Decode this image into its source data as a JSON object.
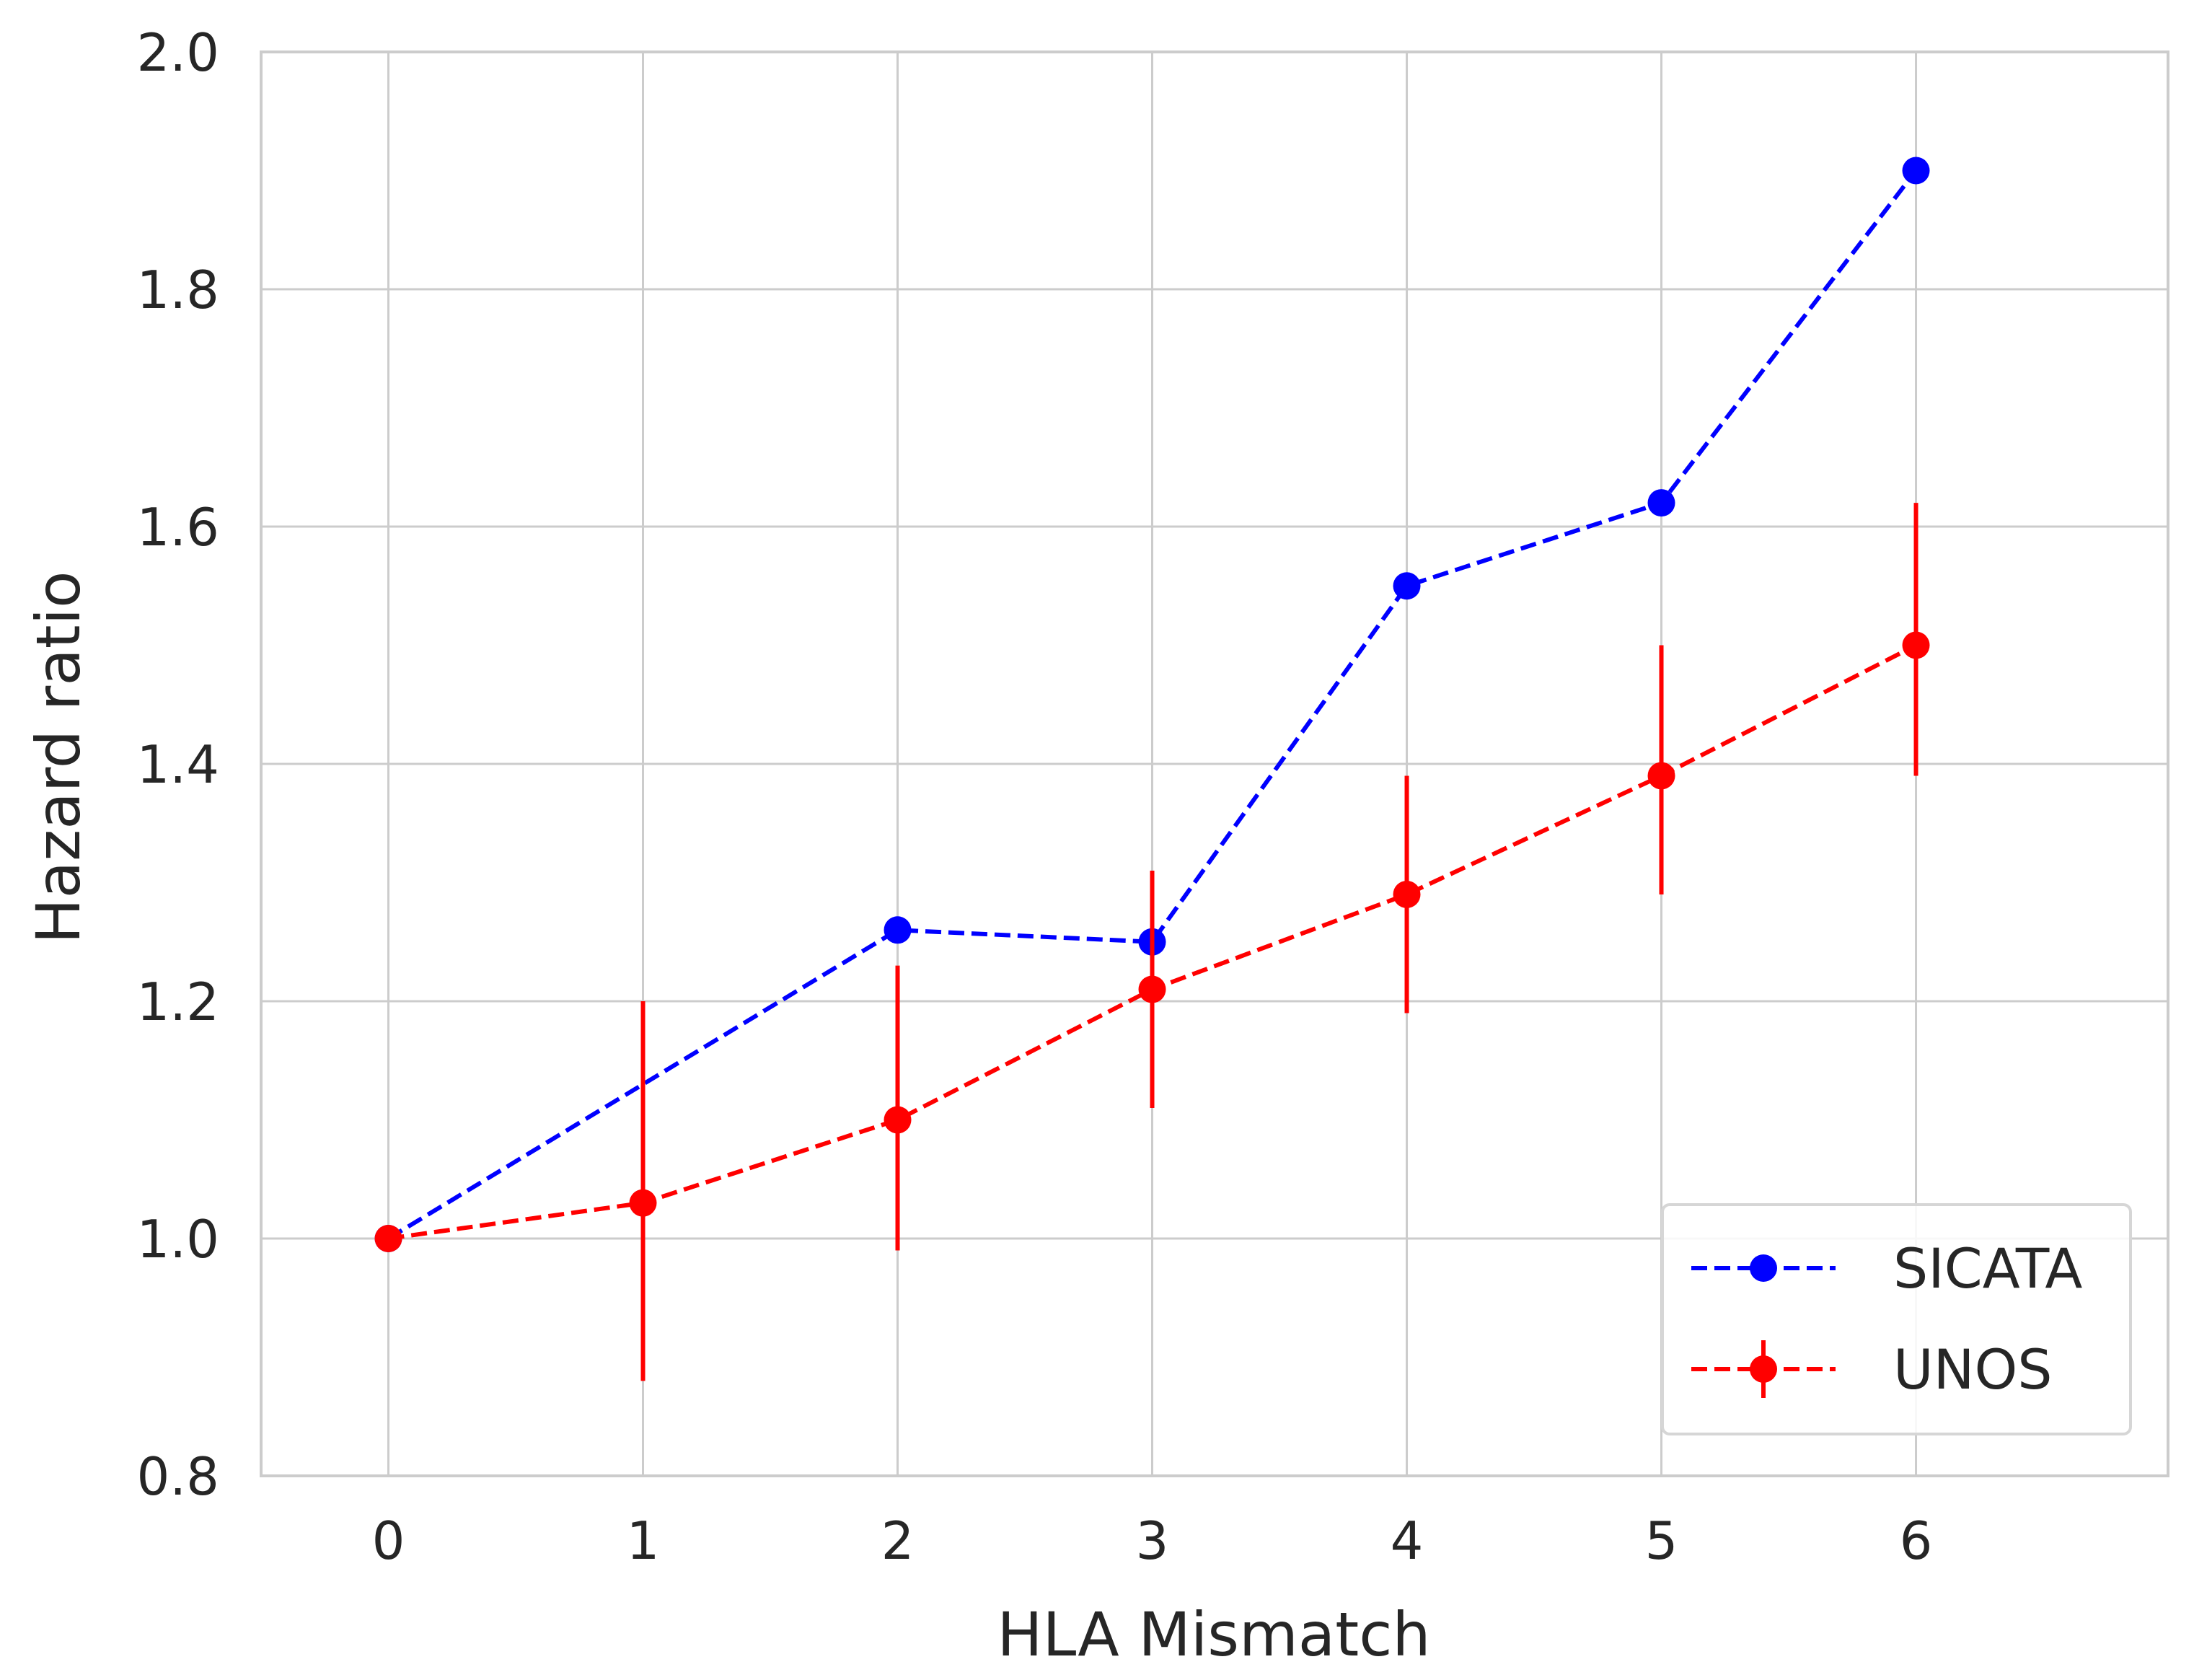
{
  "chart_data": {
    "type": "line",
    "title": "",
    "xlabel": "HLA Mismatch",
    "ylabel": "Hazard ratio",
    "x": [
      0,
      1,
      2,
      3,
      4,
      5,
      6
    ],
    "xlim": [
      -0.5,
      6.99
    ],
    "ylim": [
      0.8,
      2.0
    ],
    "x_ticks": [
      "0",
      "1",
      "2",
      "3",
      "4",
      "5",
      "6"
    ],
    "y_ticks": [
      "0.8",
      "1.0",
      "1.2",
      "1.4",
      "1.6",
      "1.8",
      "2.0"
    ],
    "grid": true,
    "legend_position": "bottom-right",
    "series": [
      {
        "name": "SICATA",
        "color": "#0000ff",
        "line_style": "dashed",
        "marker": "circle",
        "values": [
          1.0,
          1.13,
          1.26,
          1.25,
          1.55,
          1.62,
          1.9
        ]
      },
      {
        "name": "UNOS",
        "color": "#ff0000",
        "line_style": "dashed",
        "marker": "circle",
        "values": [
          1.0,
          1.03,
          1.1,
          1.21,
          1.29,
          1.39,
          1.5
        ],
        "error_low": [
          1.0,
          0.88,
          0.99,
          1.11,
          1.19,
          1.29,
          1.39
        ],
        "error_high": [
          1.0,
          1.2,
          1.23,
          1.31,
          1.39,
          1.5,
          1.62
        ]
      }
    ]
  }
}
